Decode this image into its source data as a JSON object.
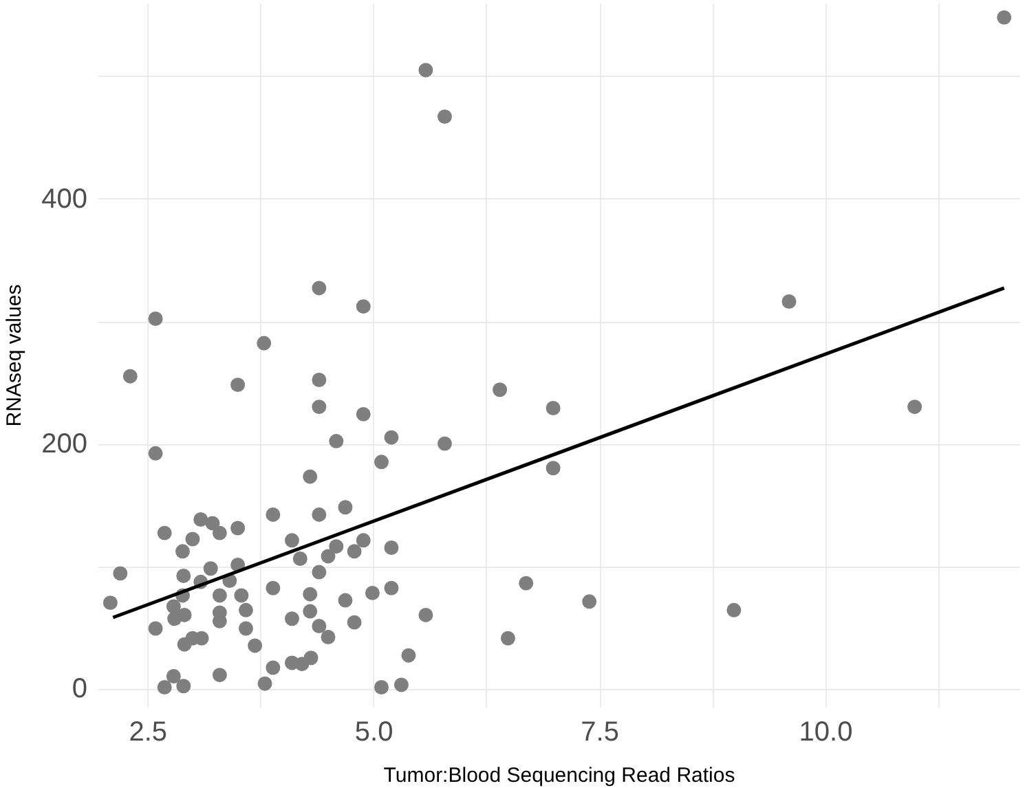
{
  "chart_data": {
    "type": "scatter",
    "xlabel": "Tumor:Blood Sequencing Read Ratios",
    "ylabel": "RNAseq values",
    "xlim": [
      1.95,
      12.15
    ],
    "ylim": [
      -15,
      560
    ],
    "xticks": [
      2.5,
      {
        "value": 3.75,
        "label": null
      },
      {
        "value": 5.0,
        "label": "5.0"
      },
      {
        "value": 6.25,
        "label": null
      },
      7.5,
      {
        "value": 8.75,
        "label": null
      },
      {
        "value": 10.0,
        "label": "10.0"
      },
      {
        "value": 11.25,
        "label": null
      }
    ],
    "yticks": [
      0,
      {
        "value": 100,
        "label": null
      },
      200,
      {
        "value": 300,
        "label": null
      },
      400,
      {
        "value": 500,
        "label": null
      }
    ],
    "grid": true,
    "marker": "circle",
    "series": [
      {
        "color": "#7f7f7f",
        "x": [
          4.4,
          4.89,
          2.59,
          3.79,
          2.31,
          3.5,
          4.4,
          4.4,
          4.89,
          4.59,
          5.2,
          5.79,
          2.59,
          5.09,
          4.3,
          3.89,
          4.4,
          4.69,
          3.09,
          3.22,
          3.5,
          3.3,
          2.69,
          3.0,
          2.89,
          4.1,
          4.89,
          4.79,
          4.59,
          4.5,
          5.2,
          4.19,
          3.5,
          3.2,
          2.2,
          2.9,
          4.4,
          3.41,
          3.09,
          3.89,
          5.2,
          4.99,
          4.3,
          2.89,
          3.3,
          3.54,
          3.59,
          4.69,
          2.09,
          2.79,
          2.8,
          2.91,
          3.3,
          3.3,
          4.3,
          5.58,
          4.1,
          2.59,
          3.59,
          4.4,
          4.5,
          4.79,
          2.91,
          3.0,
          3.1,
          3.69,
          5.39,
          4.1,
          4.21,
          4.31,
          3.89,
          3.3,
          2.79,
          2.69,
          2.9,
          3.8,
          5.09,
          5.31,
          11.98,
          5.58,
          5.79,
          9.6,
          6.4,
          6.99,
          10.99,
          6.99,
          6.69,
          7.39,
          8.99,
          6.49
        ],
        "values": [
          327,
          312,
          302,
          282,
          255,
          248,
          252,
          230,
          224,
          202,
          205,
          200,
          192,
          185,
          173,
          142,
          142,
          148,
          138,
          135,
          131,
          127,
          127,
          122,
          112,
          121,
          121,
          112,
          116,
          108,
          115,
          106,
          101,
          98,
          94,
          92,
          95,
          88,
          87,
          82,
          82,
          78,
          77,
          76,
          76,
          76,
          64,
          72,
          70,
          67,
          57,
          60,
          62,
          55,
          63,
          60,
          57,
          49,
          49,
          51,
          42,
          54,
          36,
          41,
          41,
          35,
          27,
          21,
          20,
          25,
          17,
          11,
          10,
          1,
          2,
          4,
          1,
          3,
          548,
          505,
          467,
          316,
          244,
          229,
          230,
          180,
          86,
          71,
          64,
          41
        ]
      },
      {
        "type": "line",
        "color": "#000000",
        "marker": "none",
        "x": [
          2.12,
          11.98
        ],
        "values": [
          58,
          327
        ]
      }
    ]
  }
}
